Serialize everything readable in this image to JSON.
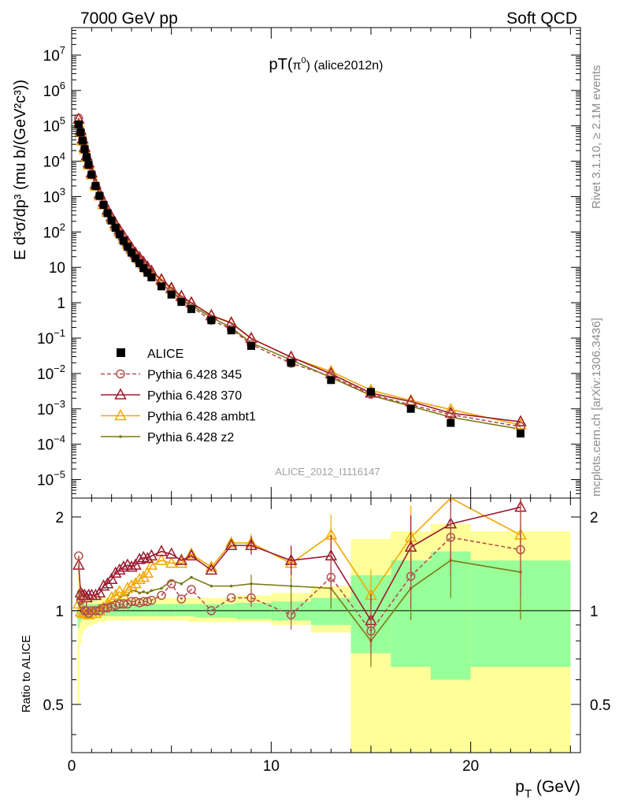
{
  "header": {
    "left": "7000 GeV pp",
    "right": "Soft QCD"
  },
  "side_text": {
    "rivet": "Rivet 3.1.10, ≥ 2.1M events",
    "mcplots": "mcplots.cern.ch [arXiv:1306.3436]"
  },
  "chart_data": [
    {
      "type": "scatter",
      "title": "pT(π⁰) (alice2012n)",
      "watermark": "ALICE_2012_I1116147",
      "xlabel": "p_T (GeV)",
      "ylabel": "E d³σ/dp³ (mu b/(GeV²c³))",
      "xlim": [
        0,
        25.5
      ],
      "ylim": [
        3e-06,
        60000000.0
      ],
      "yscale": "log",
      "y_tick_labels": [
        "10^-5",
        "10^-4",
        "10^-3",
        "10^-2",
        "10^-1",
        "1",
        "10",
        "10^2",
        "10^3",
        "10^4",
        "10^5",
        "10^6",
        "10^7"
      ],
      "legend": [
        "ALICE",
        "Pythia 6.428 345",
        "Pythia 6.428 370",
        "Pythia 6.428 ambt1",
        "Pythia 6.428 z2"
      ],
      "legend_position": "lower-left",
      "x": [
        0.35,
        0.45,
        0.55,
        0.65,
        0.75,
        0.85,
        1.0,
        1.2,
        1.4,
        1.6,
        1.8,
        2.0,
        2.2,
        2.4,
        2.6,
        2.8,
        3.0,
        3.2,
        3.4,
        3.6,
        3.8,
        4.0,
        4.5,
        5.0,
        5.5,
        6.0,
        7.0,
        8.0,
        9.0,
        11.0,
        13.0,
        15.0,
        17.0,
        19.0,
        22.5
      ],
      "series": [
        {
          "name": "ALICE",
          "color": "#000000",
          "marker": "square",
          "values": [
            110000.0,
            65000.0,
            38000.0,
            22000.0,
            13000.0,
            8000.0,
            4200.0,
            2000.0,
            1050.0,
            580.0,
            340.0,
            210.0,
            130.0,
            85,
            56,
            38,
            26,
            18,
            13,
            9.5,
            7.0,
            5.2,
            2.9,
            1.7,
            1.05,
            0.66,
            0.32,
            0.165,
            0.06,
            0.02,
            0.0065,
            0.003,
            0.001,
            0.0004,
            0.0002
          ]
        },
        {
          "name": "Pythia 6.428 345",
          "color": "#b25050",
          "marker": "open-circle",
          "dashed": true,
          "ratio": [
            1.5,
            1.08,
            1.05,
            1.0,
            1.0,
            0.98,
            1.0,
            1.0,
            1.0,
            1.02,
            1.02,
            1.03,
            1.04,
            1.05,
            1.05,
            1.05,
            1.07,
            1.07,
            1.06,
            1.07,
            1.07,
            1.08,
            1.12,
            1.22,
            1.09,
            1.17,
            1.0,
            1.1,
            1.1,
            0.97,
            1.28,
            0.86,
            1.29,
            1.72,
            1.57
          ]
        },
        {
          "name": "Pythia 6.428 370",
          "color": "#9b1a30",
          "marker": "open-triangle",
          "ratio": [
            1.4,
            1.14,
            1.12,
            1.12,
            1.1,
            1.12,
            1.12,
            1.12,
            1.14,
            1.2,
            1.22,
            1.26,
            1.32,
            1.35,
            1.38,
            1.4,
            1.38,
            1.4,
            1.46,
            1.48,
            1.47,
            1.5,
            1.55,
            1.52,
            1.45,
            1.5,
            1.35,
            1.62,
            1.62,
            1.45,
            1.5,
            0.93,
            1.6,
            1.9,
            2.15
          ]
        },
        {
          "name": "Pythia 6.428 ambt1",
          "color": "#f0a800",
          "marker": "open-triangle",
          "ratio": [
            1.05,
            0.99,
            0.98,
            0.98,
            0.98,
            0.97,
            0.98,
            0.98,
            1.0,
            1.02,
            1.05,
            1.1,
            1.12,
            1.15,
            1.12,
            1.18,
            1.2,
            1.22,
            1.26,
            1.28,
            1.32,
            1.4,
            1.45,
            1.42,
            1.42,
            1.52,
            1.38,
            1.65,
            1.65,
            1.42,
            1.75,
            1.12,
            1.72,
            2.4,
            1.75
          ]
        },
        {
          "name": "Pythia 6.428 z2",
          "color": "#7a7a14",
          "marker": "dot",
          "ratio": [
            1.15,
            1.02,
            1.0,
            1.0,
            1.0,
            0.98,
            1.0,
            1.02,
            1.04,
            1.04,
            1.05,
            1.06,
            1.08,
            1.1,
            1.12,
            1.12,
            1.16,
            1.16,
            1.14,
            1.15,
            1.14,
            1.16,
            1.18,
            1.25,
            1.22,
            1.28,
            1.2,
            1.2,
            1.22,
            1.2,
            1.18,
            0.8,
            1.18,
            1.45,
            1.33
          ]
        }
      ]
    },
    {
      "type": "line",
      "ylabel": "Ratio to ALICE",
      "xlim": [
        0,
        25.5
      ],
      "ylim": [
        0.35,
        2.3
      ],
      "yscale": "log",
      "y_tick_labels": [
        "0.5",
        "1",
        "2"
      ],
      "x_tick_labels": [
        "0",
        "10",
        "20"
      ],
      "bands": {
        "edges": [
          0.3,
          0.4,
          0.5,
          0.6,
          0.7,
          0.8,
          0.9,
          1.1,
          1.3,
          1.5,
          1.7,
          1.9,
          2.1,
          2.3,
          2.5,
          2.7,
          2.9,
          3.1,
          3.3,
          3.5,
          3.7,
          3.9,
          4.2,
          4.8,
          5.2,
          5.8,
          6.2,
          7.2,
          8.2,
          10.0,
          12.0,
          14.0,
          16.0,
          18.0,
          20.0,
          25.0
        ],
        "green_lo": [
          0.88,
          0.92,
          0.94,
          0.95,
          0.95,
          0.95,
          0.96,
          0.96,
          0.96,
          0.96,
          0.96,
          0.96,
          0.96,
          0.96,
          0.96,
          0.96,
          0.96,
          0.96,
          0.96,
          0.96,
          0.96,
          0.96,
          0.96,
          0.96,
          0.96,
          0.96,
          0.95,
          0.95,
          0.94,
          0.93,
          0.9,
          0.73,
          0.66,
          0.6,
          0.66
        ],
        "green_hi": [
          1.12,
          1.07,
          1.06,
          1.05,
          1.05,
          1.05,
          1.05,
          1.05,
          1.05,
          1.05,
          1.05,
          1.05,
          1.05,
          1.05,
          1.05,
          1.05,
          1.05,
          1.05,
          1.05,
          1.05,
          1.05,
          1.05,
          1.05,
          1.05,
          1.05,
          1.05,
          1.05,
          1.05,
          1.06,
          1.07,
          1.1,
          1.3,
          1.45,
          1.55,
          1.45
        ],
        "yellow_lo": [
          0.5,
          0.78,
          0.84,
          0.87,
          0.88,
          0.89,
          0.9,
          0.91,
          0.92,
          0.92,
          0.93,
          0.93,
          0.93,
          0.93,
          0.93,
          0.93,
          0.93,
          0.93,
          0.93,
          0.93,
          0.93,
          0.93,
          0.93,
          0.93,
          0.93,
          0.92,
          0.92,
          0.92,
          0.92,
          0.9,
          0.85,
          0.35,
          0.35,
          0.35,
          0.35
        ],
        "yellow_hi": [
          1.5,
          1.22,
          1.16,
          1.13,
          1.11,
          1.1,
          1.1,
          1.1,
          1.1,
          1.1,
          1.1,
          1.1,
          1.1,
          1.1,
          1.1,
          1.1,
          1.1,
          1.1,
          1.1,
          1.1,
          1.1,
          1.1,
          1.1,
          1.1,
          1.1,
          1.1,
          1.1,
          1.1,
          1.12,
          1.14,
          1.2,
          1.7,
          1.8,
          1.9,
          1.8
        ]
      }
    }
  ]
}
